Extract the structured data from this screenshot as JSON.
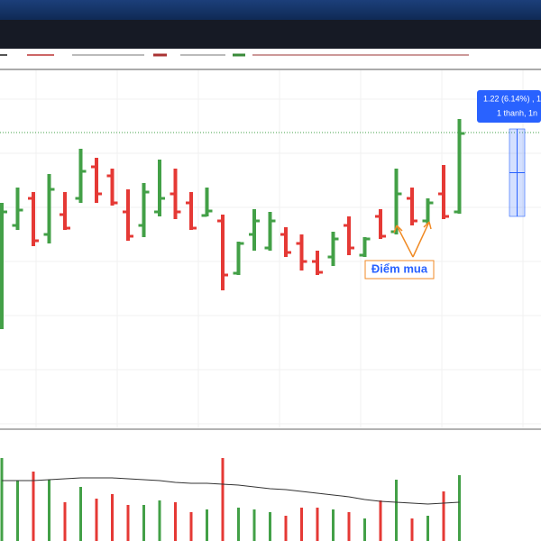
{
  "chart_data": {
    "type": "ohlc",
    "high": [
      250,
      267,
      262,
      282,
      262,
      310,
      300,
      288,
      265,
      272,
      298,
      288,
      262,
      267,
      237,
      207,
      243,
      240,
      223,
      215,
      197,
      218,
      235,
      212,
      243,
      288,
      267,
      255,
      292,
      343
    ],
    "low": [
      110,
      220,
      202,
      205,
      220,
      250,
      250,
      247,
      208,
      212,
      235,
      232,
      220,
      235,
      153,
      170,
      197,
      197,
      190,
      175,
      170,
      180,
      192,
      190,
      210,
      215,
      225,
      227,
      232,
      238
    ],
    "open": [
      150,
      225,
      255,
      215,
      237,
      255,
      290,
      280,
      240,
      225,
      240,
      260,
      250,
      236,
      230,
      172,
      215,
      200,
      215,
      205,
      185,
      190,
      225,
      192,
      235,
      218,
      255,
      230,
      260,
      240
    ],
    "close": [
      240,
      242,
      208,
      265,
      222,
      285,
      260,
      250,
      213,
      262,
      255,
      240,
      222,
      241,
      170,
      205,
      230,
      230,
      195,
      185,
      173,
      210,
      200,
      210,
      213,
      260,
      230,
      250,
      235,
      327
    ],
    "volume": [
      92,
      67,
      77,
      68,
      43,
      60,
      47,
      52,
      40,
      40,
      45,
      43,
      32,
      35,
      92,
      37,
      35,
      32,
      28,
      37,
      37,
      35,
      32,
      25,
      45,
      68,
      25,
      28,
      55,
      73
    ],
    "volume_ma": [
      67,
      67,
      67,
      68,
      69,
      70,
      70,
      70,
      69,
      68,
      67,
      65,
      64,
      64,
      63,
      62,
      60,
      58,
      57,
      55,
      53,
      51,
      49,
      46,
      44,
      43,
      42,
      41,
      42,
      43
    ],
    "up_color": "#43a047",
    "down_color": "#e53935",
    "ylim": [
      0,
      395
    ],
    "volume_ylim": [
      0,
      122
    ],
    "price_line": 328,
    "measure": {
      "from": 235,
      "to": 332,
      "labels": [
        "1.22 (6.14%) , 1",
        "1 thanh, 1n"
      ]
    },
    "annotation": "Điểm mua"
  }
}
